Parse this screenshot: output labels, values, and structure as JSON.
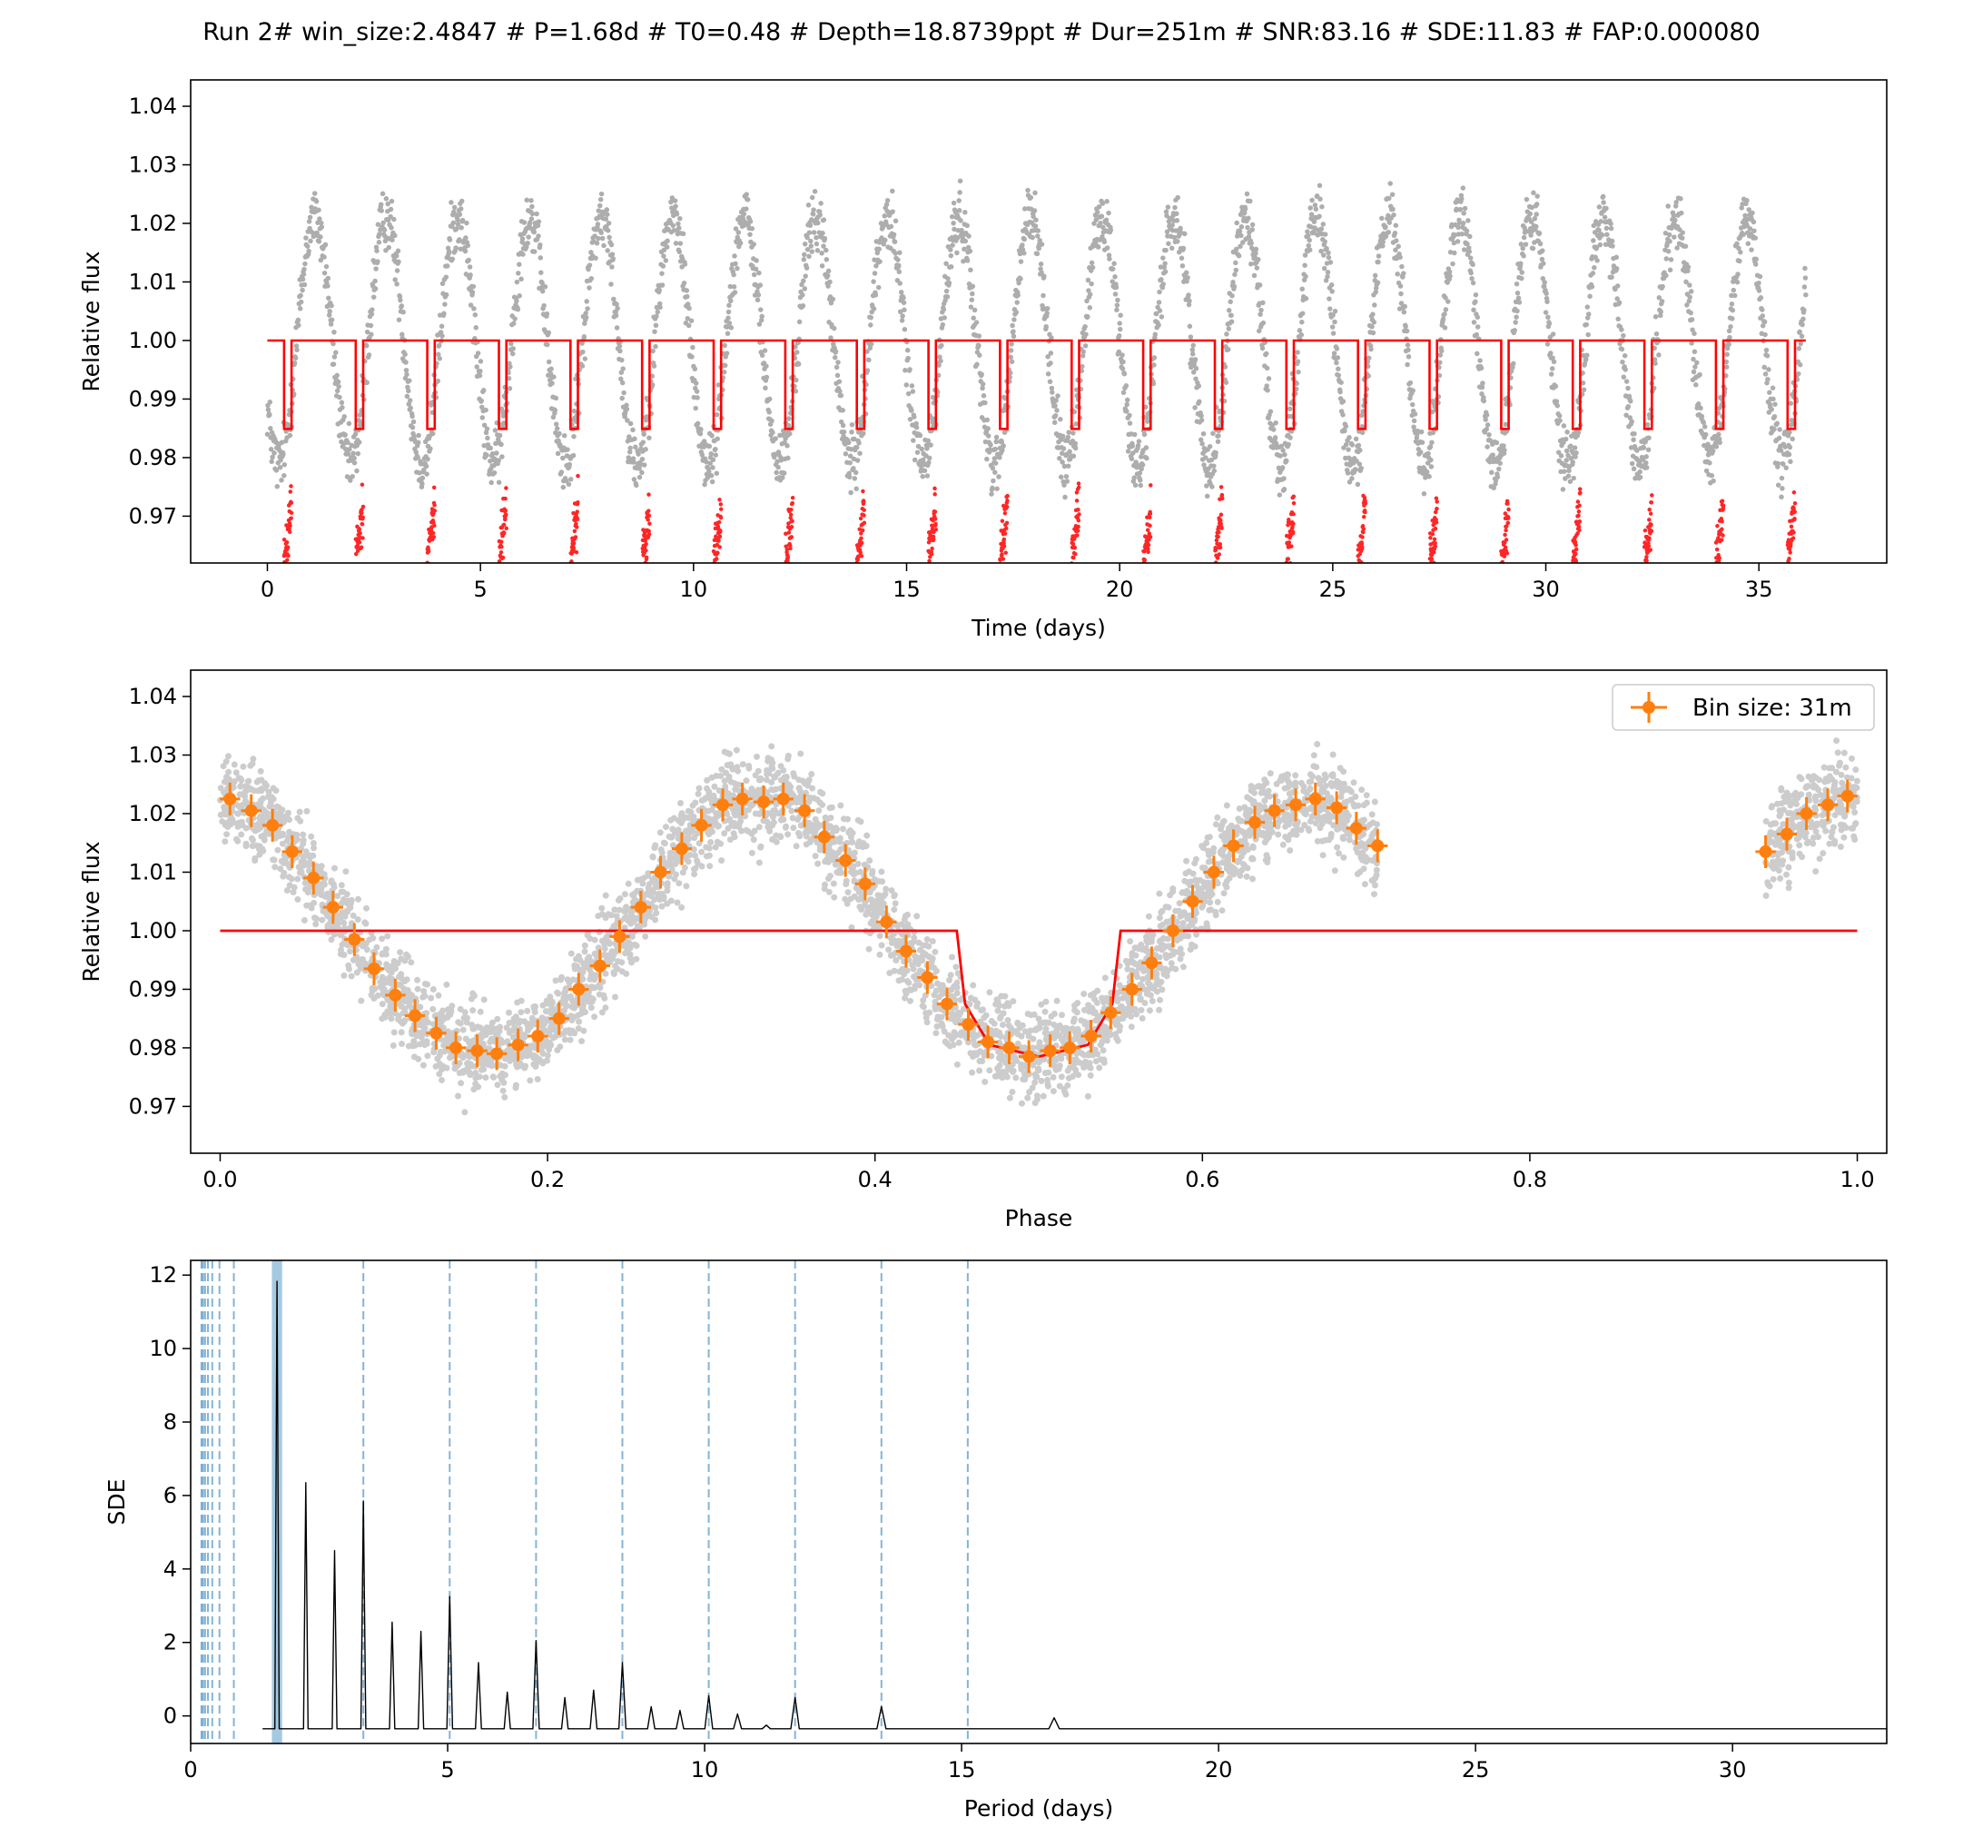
{
  "figure": {
    "title": "Run 2# win_size:2.4847 # P=1.68d # T0=0.48 # Depth=18.8739ppt # Dur=251m # SNR:83.16 # SDE:11.83 # FAP:0.000080"
  },
  "colors": {
    "data_points": "#000000",
    "model": "#ff0000",
    "binned": "#ff7f0e",
    "periodogram": "#000000",
    "harmonic_lines": "#1f77b4",
    "best_period_band": "#1f77b4"
  },
  "chart_data": [
    {
      "id": "lightcurve",
      "type": "scatter",
      "xlabel": "Time (days)",
      "ylabel": "Relative flux",
      "xlim": [
        -1.8,
        38.0
      ],
      "ylim": [
        0.962,
        1.0445
      ],
      "xticks": [
        0,
        5,
        10,
        15,
        20,
        25,
        30,
        35
      ],
      "yticks": [
        0.97,
        0.98,
        0.99,
        1.0,
        1.01,
        1.02,
        1.03,
        1.04
      ],
      "ytick_format": 2,
      "grid": false,
      "time_span": [
        0.0,
        36.1
      ],
      "model": {
        "name": "transit model",
        "period": 1.68,
        "t0": 0.48,
        "depth_ppt": 18.8739,
        "duration_min": 251,
        "baseline": 1.0
      },
      "variability": {
        "period": 1.68,
        "amplitude": 0.021,
        "phase_of_minimum": 0.16
      }
    },
    {
      "id": "phasefold",
      "type": "scatter",
      "xlabel": "Phase",
      "ylabel": "Relative flux",
      "xlim": [
        -0.018,
        1.018
      ],
      "ylim": [
        0.962,
        1.0445
      ],
      "xticks": [
        0.0,
        0.2,
        0.4,
        0.6,
        0.8,
        1.0
      ],
      "yticks": [
        0.97,
        0.98,
        0.99,
        1.0,
        1.01,
        1.02,
        1.03,
        1.04
      ],
      "ytick_format": 2,
      "xtick_format": 1,
      "grid": false,
      "legend": {
        "label": "Bin size: 31m",
        "placement": "top-right"
      },
      "coverage": [
        [
          0.0,
          0.707
        ],
        [
          0.944,
          1.0
        ]
      ],
      "model": {
        "x": [
          0.0,
          0.45,
          0.455,
          0.47,
          0.5,
          0.53,
          0.545,
          0.55,
          1.0
        ],
        "y": [
          1.0,
          1.0,
          0.9875,
          0.9805,
          0.9785,
          0.9805,
          0.9875,
          1.0,
          1.0
        ]
      },
      "binned": {
        "x": [
          0.006,
          0.019,
          0.032,
          0.044,
          0.057,
          0.069,
          0.082,
          0.094,
          0.107,
          0.119,
          0.132,
          0.144,
          0.157,
          0.169,
          0.182,
          0.194,
          0.207,
          0.219,
          0.232,
          0.244,
          0.257,
          0.269,
          0.282,
          0.294,
          0.307,
          0.319,
          0.332,
          0.344,
          0.357,
          0.369,
          0.382,
          0.394,
          0.407,
          0.419,
          0.432,
          0.444,
          0.457,
          0.469,
          0.482,
          0.494,
          0.507,
          0.519,
          0.532,
          0.544,
          0.557,
          0.569,
          0.582,
          0.594,
          0.607,
          0.619,
          0.632,
          0.644,
          0.657,
          0.669,
          0.682,
          0.694,
          0.707,
          0.944,
          0.957,
          0.969,
          0.982,
          0.994
        ],
        "y": [
          1.0225,
          1.0205,
          1.018,
          1.0135,
          1.009,
          1.004,
          0.9985,
          0.9935,
          0.989,
          0.9855,
          0.9825,
          0.98,
          0.9795,
          0.979,
          0.9805,
          0.982,
          0.985,
          0.99,
          0.994,
          0.999,
          1.004,
          1.01,
          1.014,
          1.018,
          1.0215,
          1.0225,
          1.022,
          1.0225,
          1.0205,
          1.016,
          1.012,
          1.008,
          1.0015,
          0.9965,
          0.992,
          0.9875,
          0.984,
          0.981,
          0.98,
          0.9785,
          0.9795,
          0.98,
          0.982,
          0.986,
          0.99,
          0.9945,
          1.0,
          1.005,
          1.01,
          1.0145,
          1.0185,
          1.0205,
          1.0215,
          1.0225,
          1.021,
          1.0175,
          1.0145,
          1.0135,
          1.0165,
          1.02,
          1.0215,
          1.023
        ],
        "yerr": 0.0028,
        "xerr": 0.0062
      }
    },
    {
      "id": "periodogram",
      "type": "line",
      "xlabel": "Period (days)",
      "ylabel": "SDE",
      "xlim": [
        0.0,
        33.0
      ],
      "ylim": [
        -0.75,
        12.4
      ],
      "xticks": [
        0,
        5,
        10,
        15,
        20,
        25,
        30
      ],
      "yticks": [
        0,
        2,
        4,
        6,
        8,
        10,
        12
      ],
      "grid": false,
      "baseline": -0.35,
      "period_range": [
        1.4,
        33.0
      ],
      "best_period": 1.68,
      "peaks": [
        {
          "x": 1.68,
          "y": 11.83
        },
        {
          "x": 2.24,
          "y": 6.35
        },
        {
          "x": 2.8,
          "y": 4.5
        },
        {
          "x": 3.36,
          "y": 5.85
        },
        {
          "x": 3.92,
          "y": 2.55
        },
        {
          "x": 4.48,
          "y": 2.3
        },
        {
          "x": 5.04,
          "y": 3.25
        },
        {
          "x": 5.6,
          "y": 1.45
        },
        {
          "x": 6.16,
          "y": 0.65
        },
        {
          "x": 6.72,
          "y": 2.05
        },
        {
          "x": 7.28,
          "y": 0.5
        },
        {
          "x": 7.84,
          "y": 0.7
        },
        {
          "x": 8.4,
          "y": 1.45
        },
        {
          "x": 8.96,
          "y": 0.25
        },
        {
          "x": 9.52,
          "y": 0.15
        },
        {
          "x": 10.08,
          "y": 0.55
        },
        {
          "x": 10.64,
          "y": 0.05
        },
        {
          "x": 11.2,
          "y": -0.25
        },
        {
          "x": 11.76,
          "y": 0.5
        },
        {
          "x": 13.44,
          "y": 0.25
        },
        {
          "x": 16.8,
          "y": -0.05
        }
      ],
      "harmonic_lines": [
        0.21,
        0.24,
        0.28,
        0.336,
        0.42,
        0.56,
        0.84,
        3.36,
        5.04,
        6.72,
        8.4,
        10.08,
        11.76,
        13.44,
        15.12
      ]
    }
  ]
}
